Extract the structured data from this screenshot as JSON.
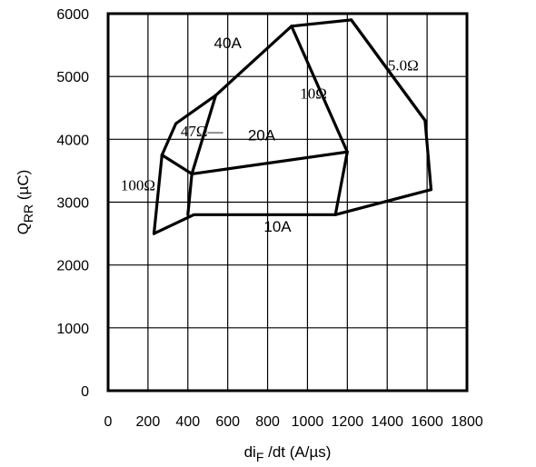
{
  "chart_data": {
    "type": "line",
    "title": "",
    "xlabel": {
      "main": "di",
      "sub": "F",
      "rest": " /dt (A/µs)"
    },
    "ylabel": {
      "main": "Q",
      "sub": "RR",
      "rest": " (µC)"
    },
    "xlim": [
      0,
      1800
    ],
    "ylim": [
      0,
      6000
    ],
    "grid": true,
    "x_ticks": [
      0,
      200,
      400,
      600,
      800,
      1000,
      1200,
      1400,
      1600,
      1800
    ],
    "y_ticks": [
      0,
      1000,
      2000,
      3000,
      4000,
      5000,
      6000
    ],
    "x_tick_labels": [
      "0",
      "200",
      "400",
      "600",
      "800",
      "1000",
      "1200",
      "1400",
      "1600",
      "1800"
    ],
    "y_tick_labels": [
      "0",
      "1000",
      "2000",
      "3000",
      "4000",
      "5000",
      "6000"
    ],
    "series": [
      {
        "name": "40A",
        "points": [
          [
            270,
            3750
          ],
          [
            340,
            4250
          ],
          [
            540,
            4700
          ],
          [
            920,
            5800
          ],
          [
            1220,
            5900
          ],
          [
            1590,
            4300
          ]
        ]
      },
      {
        "name": "20A",
        "points": [
          [
            270,
            3750
          ],
          [
            420,
            3450
          ],
          [
            1200,
            3800
          ]
        ]
      },
      {
        "name": "10A",
        "points": [
          [
            230,
            2500
          ],
          [
            430,
            2800
          ],
          [
            1140,
            2800
          ],
          [
            1620,
            3200
          ]
        ]
      },
      {
        "name": "100Ω",
        "points": [
          [
            270,
            3750
          ],
          [
            230,
            2500
          ]
        ]
      },
      {
        "name": "47Ω",
        "points": [
          [
            540,
            4700
          ],
          [
            420,
            3450
          ],
          [
            400,
            2800
          ]
        ]
      },
      {
        "name": "10Ω",
        "points": [
          [
            920,
            5800
          ],
          [
            1200,
            3800
          ],
          [
            1140,
            2800
          ]
        ]
      },
      {
        "name": "5.0Ω",
        "points": [
          [
            1220,
            5900
          ],
          [
            1590,
            4300
          ],
          [
            1620,
            3200
          ]
        ]
      }
    ],
    "annotations": [
      {
        "text": "40A",
        "x": 600,
        "y": 5450,
        "font": "sans"
      },
      {
        "text": "5.0Ω",
        "x": 1480,
        "y": 5100,
        "font": "serif"
      },
      {
        "text": "10Ω",
        "x": 1030,
        "y": 4650,
        "font": "serif"
      },
      {
        "text": "47Ω—",
        "x": 470,
        "y": 4050,
        "font": "serif"
      },
      {
        "text": "20A",
        "x": 770,
        "y": 3980,
        "font": "sans"
      },
      {
        "text": "100Ω",
        "x": 150,
        "y": 3190,
        "font": "serif"
      },
      {
        "text": "10A",
        "x": 850,
        "y": 2530,
        "font": "sans"
      }
    ]
  }
}
